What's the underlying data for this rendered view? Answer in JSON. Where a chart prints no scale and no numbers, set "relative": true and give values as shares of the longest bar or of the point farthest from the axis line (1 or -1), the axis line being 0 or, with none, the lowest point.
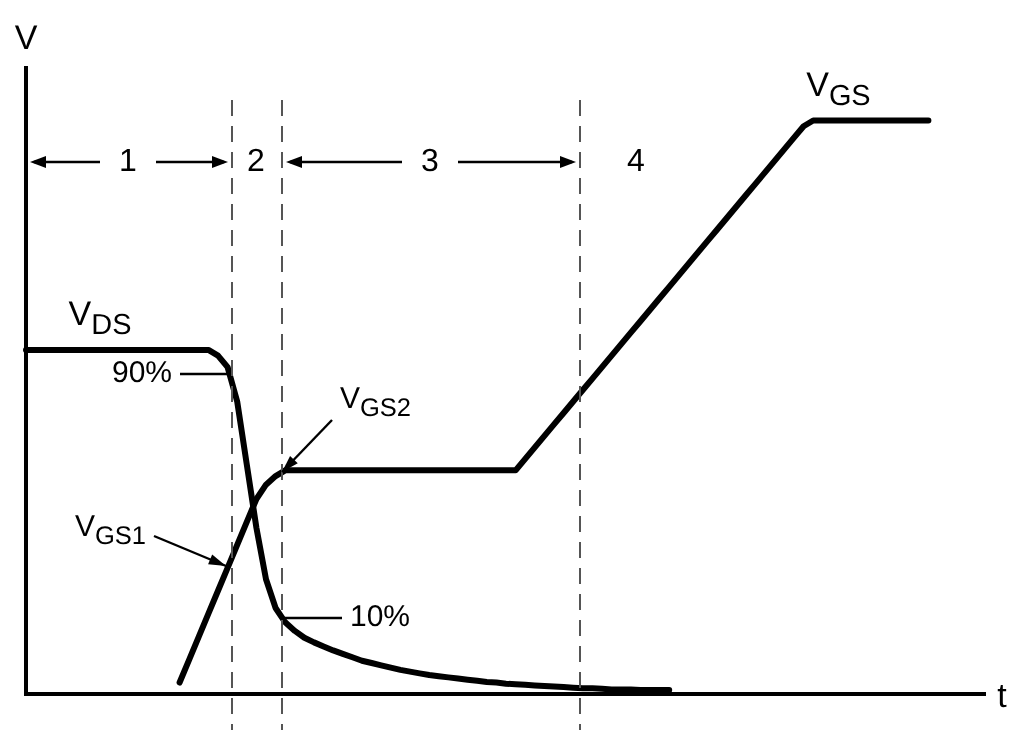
{
  "chart_data": {
    "type": "line",
    "relative": true,
    "xlabel": "t",
    "ylabel": "V",
    "legend": false,
    "marker": "none",
    "categories": [
      null,
      null,
      null,
      null,
      null,
      null,
      null,
      null,
      null,
      null,
      null,
      null,
      null,
      null,
      null,
      null,
      null,
      null,
      null,
      null,
      null,
      null,
      null,
      null,
      null,
      null,
      null,
      null,
      null,
      null,
      null,
      null,
      null,
      null,
      null,
      null,
      null,
      null,
      null,
      null,
      null,
      null,
      null,
      null,
      null,
      null,
      null,
      null,
      null,
      null,
      null,
      null,
      null,
      null,
      null,
      null,
      null,
      null,
      null,
      null,
      null,
      null,
      null,
      null,
      null,
      null,
      null,
      null,
      null,
      null,
      null,
      null,
      null,
      null,
      null,
      null,
      null,
      null,
      null,
      null,
      null,
      null,
      null,
      null,
      null,
      null,
      null,
      null,
      null,
      null,
      null,
      null,
      null,
      null,
      null,
      null,
      null,
      null,
      null,
      null,
      null
    ],
    "series": [
      {
        "name": "V$_{GS}$",
        "color": "#000000",
        "values": [
          null,
          null,
          null,
          null,
          null,
          null,
          null,
          null,
          null,
          null,
          null,
          null,
          null,
          null,
          null,
          null,
          0.02,
          0.06,
          0.1,
          0.14,
          0.18,
          0.22,
          0.26,
          0.3,
          0.34,
          0.365,
          0.38,
          0.39,
          0.39,
          0.39,
          0.39,
          0.39,
          0.39,
          0.39,
          0.39,
          0.39,
          0.39,
          0.39,
          0.39,
          0.39,
          0.39,
          0.39,
          0.39,
          0.39,
          0.39,
          0.39,
          0.39,
          0.39,
          0.39,
          0.39,
          0.39,
          0.39,
          0.41,
          0.43,
          0.45,
          0.47,
          0.49,
          0.51,
          0.53,
          0.55,
          0.57,
          0.59,
          0.61,
          0.63,
          0.65,
          0.67,
          0.69,
          0.71,
          0.73,
          0.75,
          0.77,
          0.79,
          0.81,
          0.83,
          0.85,
          0.87,
          0.89,
          0.91,
          0.93,
          0.95,
          0.97,
          0.99,
          1,
          1,
          1,
          1,
          1,
          1,
          1,
          1,
          1,
          1,
          1,
          1,
          1,
          null,
          null,
          null,
          null,
          null,
          null
        ]
      },
      {
        "name": "V$_{DS}$",
        "color": "#000000",
        "values": [
          0.6,
          0.6,
          0.6,
          0.6,
          0.6,
          0.6,
          0.6,
          0.6,
          0.6,
          0.6,
          0.6,
          0.6,
          0.6,
          0.6,
          0.6,
          0.6,
          0.6,
          0.6,
          0.6,
          0.6,
          0.59,
          0.57,
          0.51,
          0.4,
          0.29,
          0.2,
          0.15,
          0.125,
          0.11,
          0.098,
          0.09,
          0.083,
          0.076,
          0.07,
          0.064,
          0.058,
          0.054,
          0.05,
          0.046,
          0.042,
          0.039,
          0.036,
          0.033,
          0.031,
          0.029,
          0.027,
          0.025,
          0.023,
          0.021,
          0.02,
          0.018,
          0.017,
          0.016,
          0.015,
          0.014,
          0.013,
          0.012,
          0.011,
          0.01,
          0.01,
          0.009,
          0.008,
          0.008,
          0.008,
          0.007,
          0.007,
          0.007,
          0.007,
          null,
          null,
          null,
          null,
          null,
          null,
          null,
          null,
          null,
          null,
          null,
          null,
          null,
          null,
          null,
          null,
          null,
          null,
          null,
          null,
          null,
          null,
          null,
          null,
          null,
          null,
          null,
          null,
          null,
          null,
          null,
          null,
          null
        ]
      }
    ],
    "annotations": [
      "1",
      "2",
      "3",
      "4",
      "90%",
      "10%",
      "V$_{GS1}$",
      "V$_{GS2}$"
    ]
  }
}
